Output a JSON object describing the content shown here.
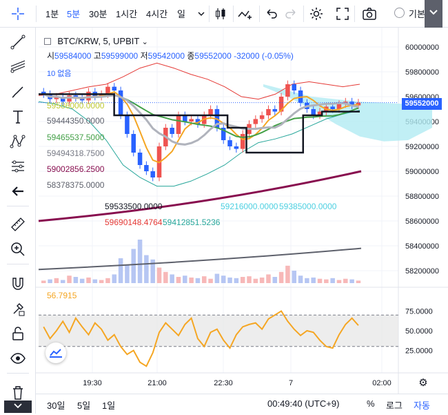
{
  "toolbar": {
    "intervals": [
      "1분",
      "5분",
      "30분",
      "1시간",
      "4시간",
      "일"
    ],
    "active_interval": "5분",
    "basic_label": "기본"
  },
  "legend": {
    "symbol": "BTC/KRW, 5, UPBIT",
    "ohlc": {
      "open_label": "시",
      "open": "59584000",
      "high_label": "고",
      "high": "59599000",
      "low_label": "저",
      "low": "59542000",
      "close_label": "종",
      "close": "59552000",
      "change": "-32000 (-0.05%)"
    },
    "ind_10": "10 없음",
    "ichimoku_values": [
      "59586000.0000",
      "59444350.0000",
      "59465537.5000",
      "59494318.7500",
      "59002856.2500",
      "58378375.0000"
    ],
    "val_black": "59533500.0000",
    "val_cloud_a": "59216000.0000",
    "val_cloud_b": "59385000.0000",
    "val_red": "59690148.4764",
    "val_teal": "59412851.5236",
    "rsi_value": "56.7915"
  },
  "price_axis": {
    "ticks": [
      "60000000",
      "59800000",
      "59600000",
      "59400000",
      "59200000",
      "59000000",
      "58800000",
      "58600000",
      "58400000",
      "58200000"
    ],
    "current": "59552000"
  },
  "rsi_axis": {
    "ticks": [
      "75.0000",
      "50.0000",
      "25.0000"
    ]
  },
  "time_axis": {
    "ticks": [
      "19:30",
      "21:00",
      "22:30",
      "7",
      "02:00"
    ]
  },
  "bottom": {
    "ranges": [
      "30일",
      "5일",
      "1일"
    ],
    "clock": "00:49:40 (UTC+9)",
    "percent": "%",
    "log": "로그",
    "auto": "자동"
  },
  "colors": {
    "up": "#26a69a",
    "down": "#2962ff",
    "up_candle": "#ef5350",
    "down_candle": "#2962ff",
    "rsi": "#f5a623",
    "bb_upper": "#e53935",
    "cloud": "#80deea"
  },
  "chart_data": {
    "type": "candlestick",
    "symbol": "BTC/KRW",
    "interval": "5",
    "y_range": [
      58100000,
      60100000
    ],
    "x_ticks": [
      "19:30",
      "21:00",
      "22:30",
      "7",
      "02:00"
    ],
    "close_series": [
      59620000,
      59580000,
      59600000,
      59560000,
      59610000,
      59590000,
      59570000,
      59640000,
      59600000,
      59620000,
      59680000,
      59650000,
      59450000,
      59300000,
      59150000,
      59050000,
      59000000,
      58950000,
      59200000,
      59350000,
      59300000,
      59450000,
      59400000,
      59420000,
      59380000,
      59450000,
      59500000,
      59350000,
      59250000,
      59200000,
      59180000,
      59300000,
      59380000,
      59420000,
      59450000,
      59500000,
      59480000,
      59600000,
      59700000,
      59650000,
      59550000,
      59500000,
      59450000,
      59480000,
      59520000,
      59500000,
      59540000,
      59560000,
      59530000,
      59552000
    ],
    "rsi": {
      "value": 56.7915,
      "levels": [
        70,
        30
      ],
      "range": [
        0,
        100
      ]
    }
  }
}
